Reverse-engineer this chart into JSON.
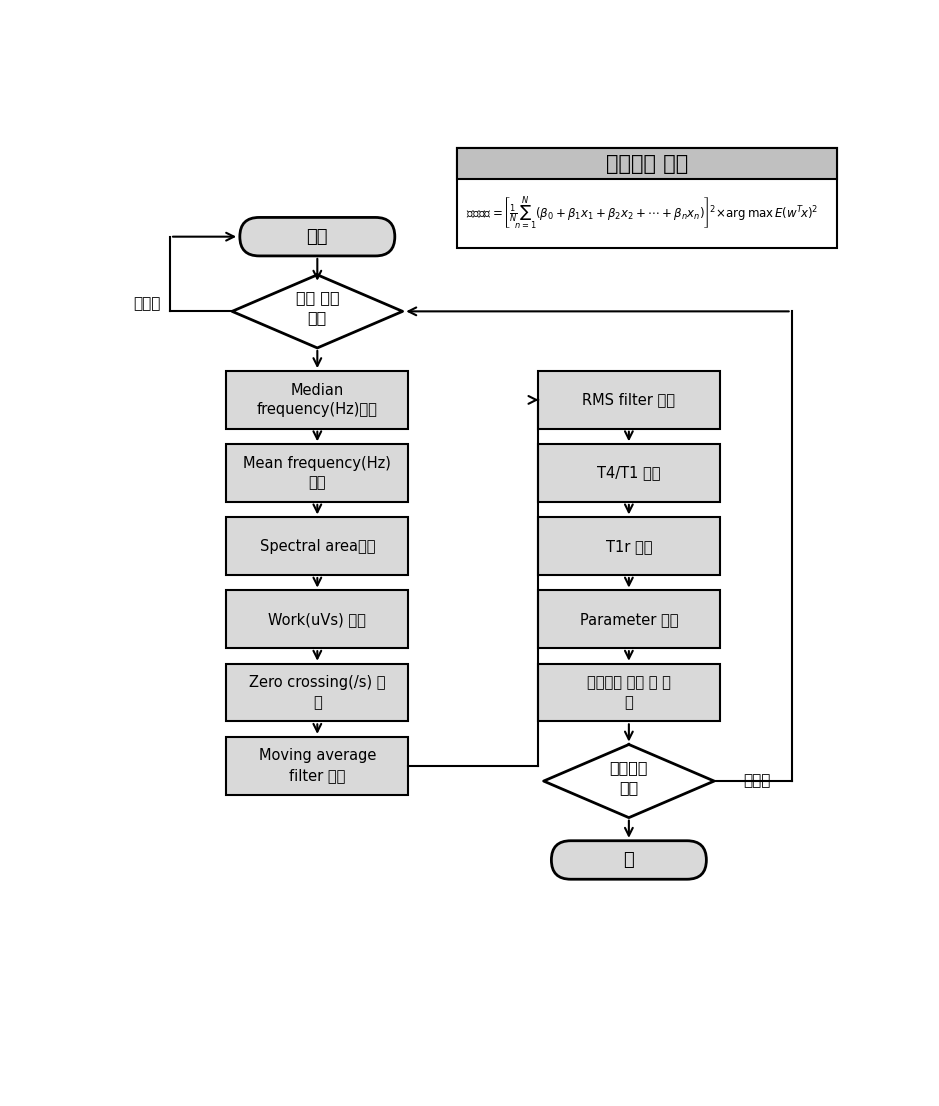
{
  "title": "마취심도 수식",
  "bg_color": "#ffffff",
  "box_fill": "#d9d9d9",
  "box_edge": "#000000",
  "left_boxes": [
    "Median\nfrequency(Hz)획득",
    "Mean frequency(Hz)\n획득",
    "Spectral area획득",
    "Work(uVs) 획득",
    "Zero crossing(/s) 획\n득",
    "Moving average\nfilter 획득"
  ],
  "right_boxes": [
    "RMS filter 획득",
    "T4/T1 획득",
    "T1r 획득",
    "Parameter 산출",
    "마취심도 계산 및 출\n력"
  ],
  "start_label": "시작",
  "end_label": "끝",
  "diamond1_label": "신호 입력\n확인",
  "diamond2_label": "프로그램\n종료",
  "anio1": "아니오",
  "anio2": "아니오"
}
